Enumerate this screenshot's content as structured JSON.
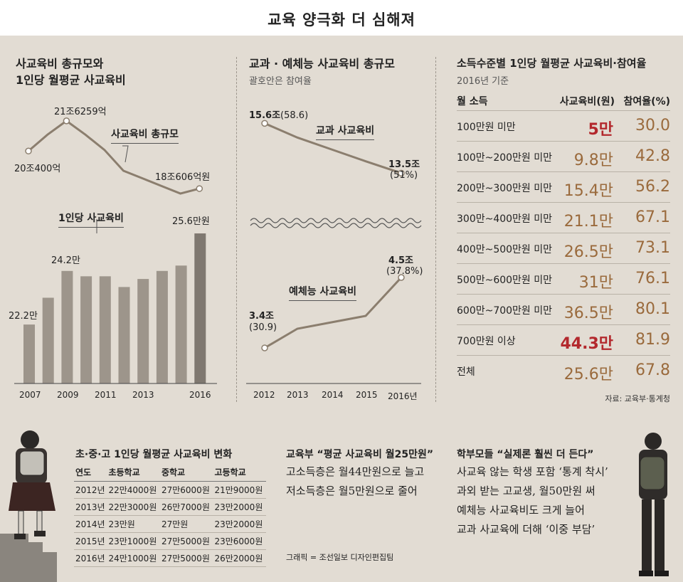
{
  "header": {
    "title": "교육 양극화 더 심해져"
  },
  "panel1": {
    "title_line1": "사교육비 총규모와",
    "title_line2": "1인당 월평균 사교육비",
    "line_callout": "사교육비 총규모",
    "line_labels": {
      "first": "20조400억",
      "peak": "21조6259억",
      "last": "18조606억원"
    },
    "bar_callout": "1인당 사교육비",
    "bar_labels": {
      "first": "22.2만",
      "peak": "24.2만",
      "last": "25.6만원"
    },
    "x_ticks": [
      "2007",
      "2009",
      "2011",
      "2013",
      "2016"
    ]
  },
  "panel2": {
    "title": "교과 · 예체능 사교육비 총규모",
    "subtitle": "괄호안은 참여율",
    "callout_top": "교과 사교육비",
    "callout_bottom": "예체능 사교육비",
    "top_start": {
      "value": "15.6조",
      "rate": "(58.6)"
    },
    "top_end": {
      "value": "13.5조",
      "rate": "(51%)"
    },
    "bottom_start": {
      "value": "3.4조",
      "rate": "(30.9)"
    },
    "bottom_end": {
      "value": "4.5조",
      "rate": "(37.8%)"
    },
    "x_ticks": [
      "2012",
      "2013",
      "2014",
      "2015",
      "2016년"
    ]
  },
  "panel3": {
    "title": "소득수준별 1인당 월평균 사교육비·참여율",
    "subtitle": "2016년 기준",
    "col_income": "월 소득",
    "col_cost": "사교육비(원)",
    "col_rate": "참여율(%)",
    "rows": [
      {
        "income": "100만원 미만",
        "cost": "5만",
        "rate": "30.0"
      },
      {
        "income": "100만~200만원 미만",
        "cost": "9.8만",
        "rate": "42.8"
      },
      {
        "income": "200만~300만원 미만",
        "cost": "15.4만",
        "rate": "56.2"
      },
      {
        "income": "300만~400만원 미만",
        "cost": "21.1만",
        "rate": "67.1"
      },
      {
        "income": "400만~500만원 미만",
        "cost": "26.5만",
        "rate": "73.1"
      },
      {
        "income": "500만~600만원 미만",
        "cost": "31만",
        "rate": "76.1"
      },
      {
        "income": "600만~700만원 미만",
        "cost": "36.5만",
        "rate": "80.1"
      },
      {
        "income": "700만원 이상",
        "cost": "44.3만",
        "rate": "81.9"
      },
      {
        "income": "전체",
        "cost": "25.6만",
        "rate": "67.8"
      }
    ],
    "source": "자료: 교육부·통계청"
  },
  "grade_table": {
    "title": "초·중·고 1인당 월평균 사교육비 변화",
    "headers": [
      "연도",
      "초등학교",
      "중학교",
      "고등학교"
    ],
    "rows": [
      [
        "2012년",
        "22만4000원",
        "27만6000원",
        "21만9000원"
      ],
      [
        "2013년",
        "22만3000원",
        "26만7000원",
        "23만2000원"
      ],
      [
        "2014년",
        "23만원",
        "27만원",
        "23만2000원"
      ],
      [
        "2015년",
        "23만1000원",
        "27만5000원",
        "23만6000원"
      ],
      [
        "2016년",
        "24만1000원",
        "27만5000원",
        "26만2000원"
      ]
    ]
  },
  "ministry": {
    "title": "교육부 “평균 사교육비 월25만원”",
    "line1": "고소득층은 월44만원으로 늘고",
    "line2": "저소득층은 월5만원으로 줄어"
  },
  "parents": {
    "title": "학부모들 “실제론 훨씬 더 든다”",
    "line1": "사교육 않는 학생 포함 ‘통계 착시’",
    "line2": "과외 받는 고교생, 월50만원 써",
    "line3": "예체능 사교육비도 크게 늘어",
    "line4": "교과 사교육에 더해 ‘이중 부담’"
  },
  "credit": "그래픽 = 조선일보 디자인편집팀",
  "colors": {
    "line": "#8b7e6e",
    "bar": "#9d958b",
    "bar_last": "#7f7870",
    "highlight": "#b3282d",
    "value": "#9a6a3c",
    "bg": "#e2dcd3"
  },
  "chart_data": [
    {
      "type": "line",
      "title": "사교육비 총규모",
      "x": [
        2007,
        2008,
        2009,
        2010,
        2011,
        2012,
        2013,
        2014,
        2015,
        2016
      ],
      "series": [
        {
          "name": "사교육비 총규모",
          "values": [
            20.04,
            20.9,
            21.63,
            20.9,
            20.1,
            19.0,
            18.6,
            18.2,
            17.8,
            18.06
          ]
        }
      ],
      "ylim": [
        17.5,
        22
      ]
    },
    {
      "type": "bar",
      "title": "1인당 사교육비",
      "categories": [
        "2007",
        "2008",
        "2009",
        "2010",
        "2011",
        "2012",
        "2013",
        "2014",
        "2015",
        "2016"
      ],
      "series": [
        {
          "name": "1인당 사교육비",
          "values": [
            22.2,
            23.2,
            24.2,
            24.0,
            24.0,
            23.6,
            23.9,
            24.2,
            24.4,
            25.6
          ]
        }
      ],
      "ylim": [
        20,
        26
      ]
    },
    {
      "type": "line",
      "title": "교과 사교육비",
      "x": [
        2012,
        2013,
        2014,
        2015,
        2016
      ],
      "series": [
        {
          "name": "교과 사교육비",
          "values": [
            15.6,
            15.0,
            14.5,
            14.0,
            13.5
          ]
        }
      ],
      "ylim": [
        13,
        16
      ]
    },
    {
      "type": "line",
      "title": "예체능 사교육비",
      "x": [
        2012,
        2013,
        2014,
        2015,
        2016
      ],
      "series": [
        {
          "name": "예체능 사교육비",
          "values": [
            3.4,
            3.7,
            3.8,
            3.9,
            4.5
          ]
        }
      ],
      "ylim": [
        3,
        5
      ]
    }
  ]
}
